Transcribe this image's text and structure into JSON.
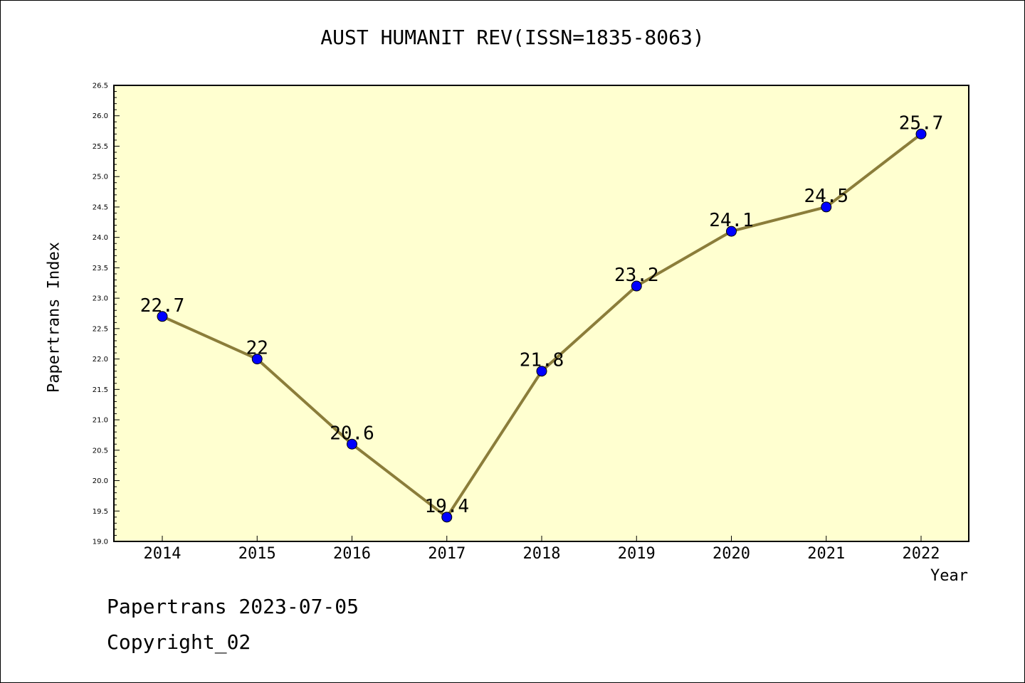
{
  "chart_data": {
    "type": "line",
    "title": "AUST HUMANIT REV(ISSN=1835-8063)",
    "xlabel": "Year",
    "ylabel": "Papertrans Index",
    "categories": [
      "2014",
      "2015",
      "2016",
      "2017",
      "2018",
      "2019",
      "2020",
      "2021",
      "2022"
    ],
    "series": [
      {
        "values": [
          22.7,
          22,
          20.6,
          19.4,
          21.8,
          23.2,
          24.1,
          24.5,
          25.7
        ],
        "labels": [
          "22.7",
          "22",
          "20.6",
          "19.4",
          "21.8",
          "23.2",
          "24.1",
          "24.5",
          "25.7"
        ]
      }
    ],
    "ylim": [
      19.0,
      26.5
    ],
    "yticks": [
      "19.0",
      "19.5",
      "20.0",
      "20.5",
      "21.0",
      "21.5",
      "22.0",
      "22.5",
      "23.0",
      "23.5",
      "24.0",
      "24.5",
      "25.0",
      "25.5",
      "26.0",
      "26.5"
    ],
    "grid": false,
    "colors": {
      "plot_bg": "#ffffd0",
      "line": "#8b7d3a",
      "marker": "#0000ff"
    }
  },
  "footer": {
    "line1": "Papertrans 2023-07-05",
    "line2": "Copyright_02"
  }
}
